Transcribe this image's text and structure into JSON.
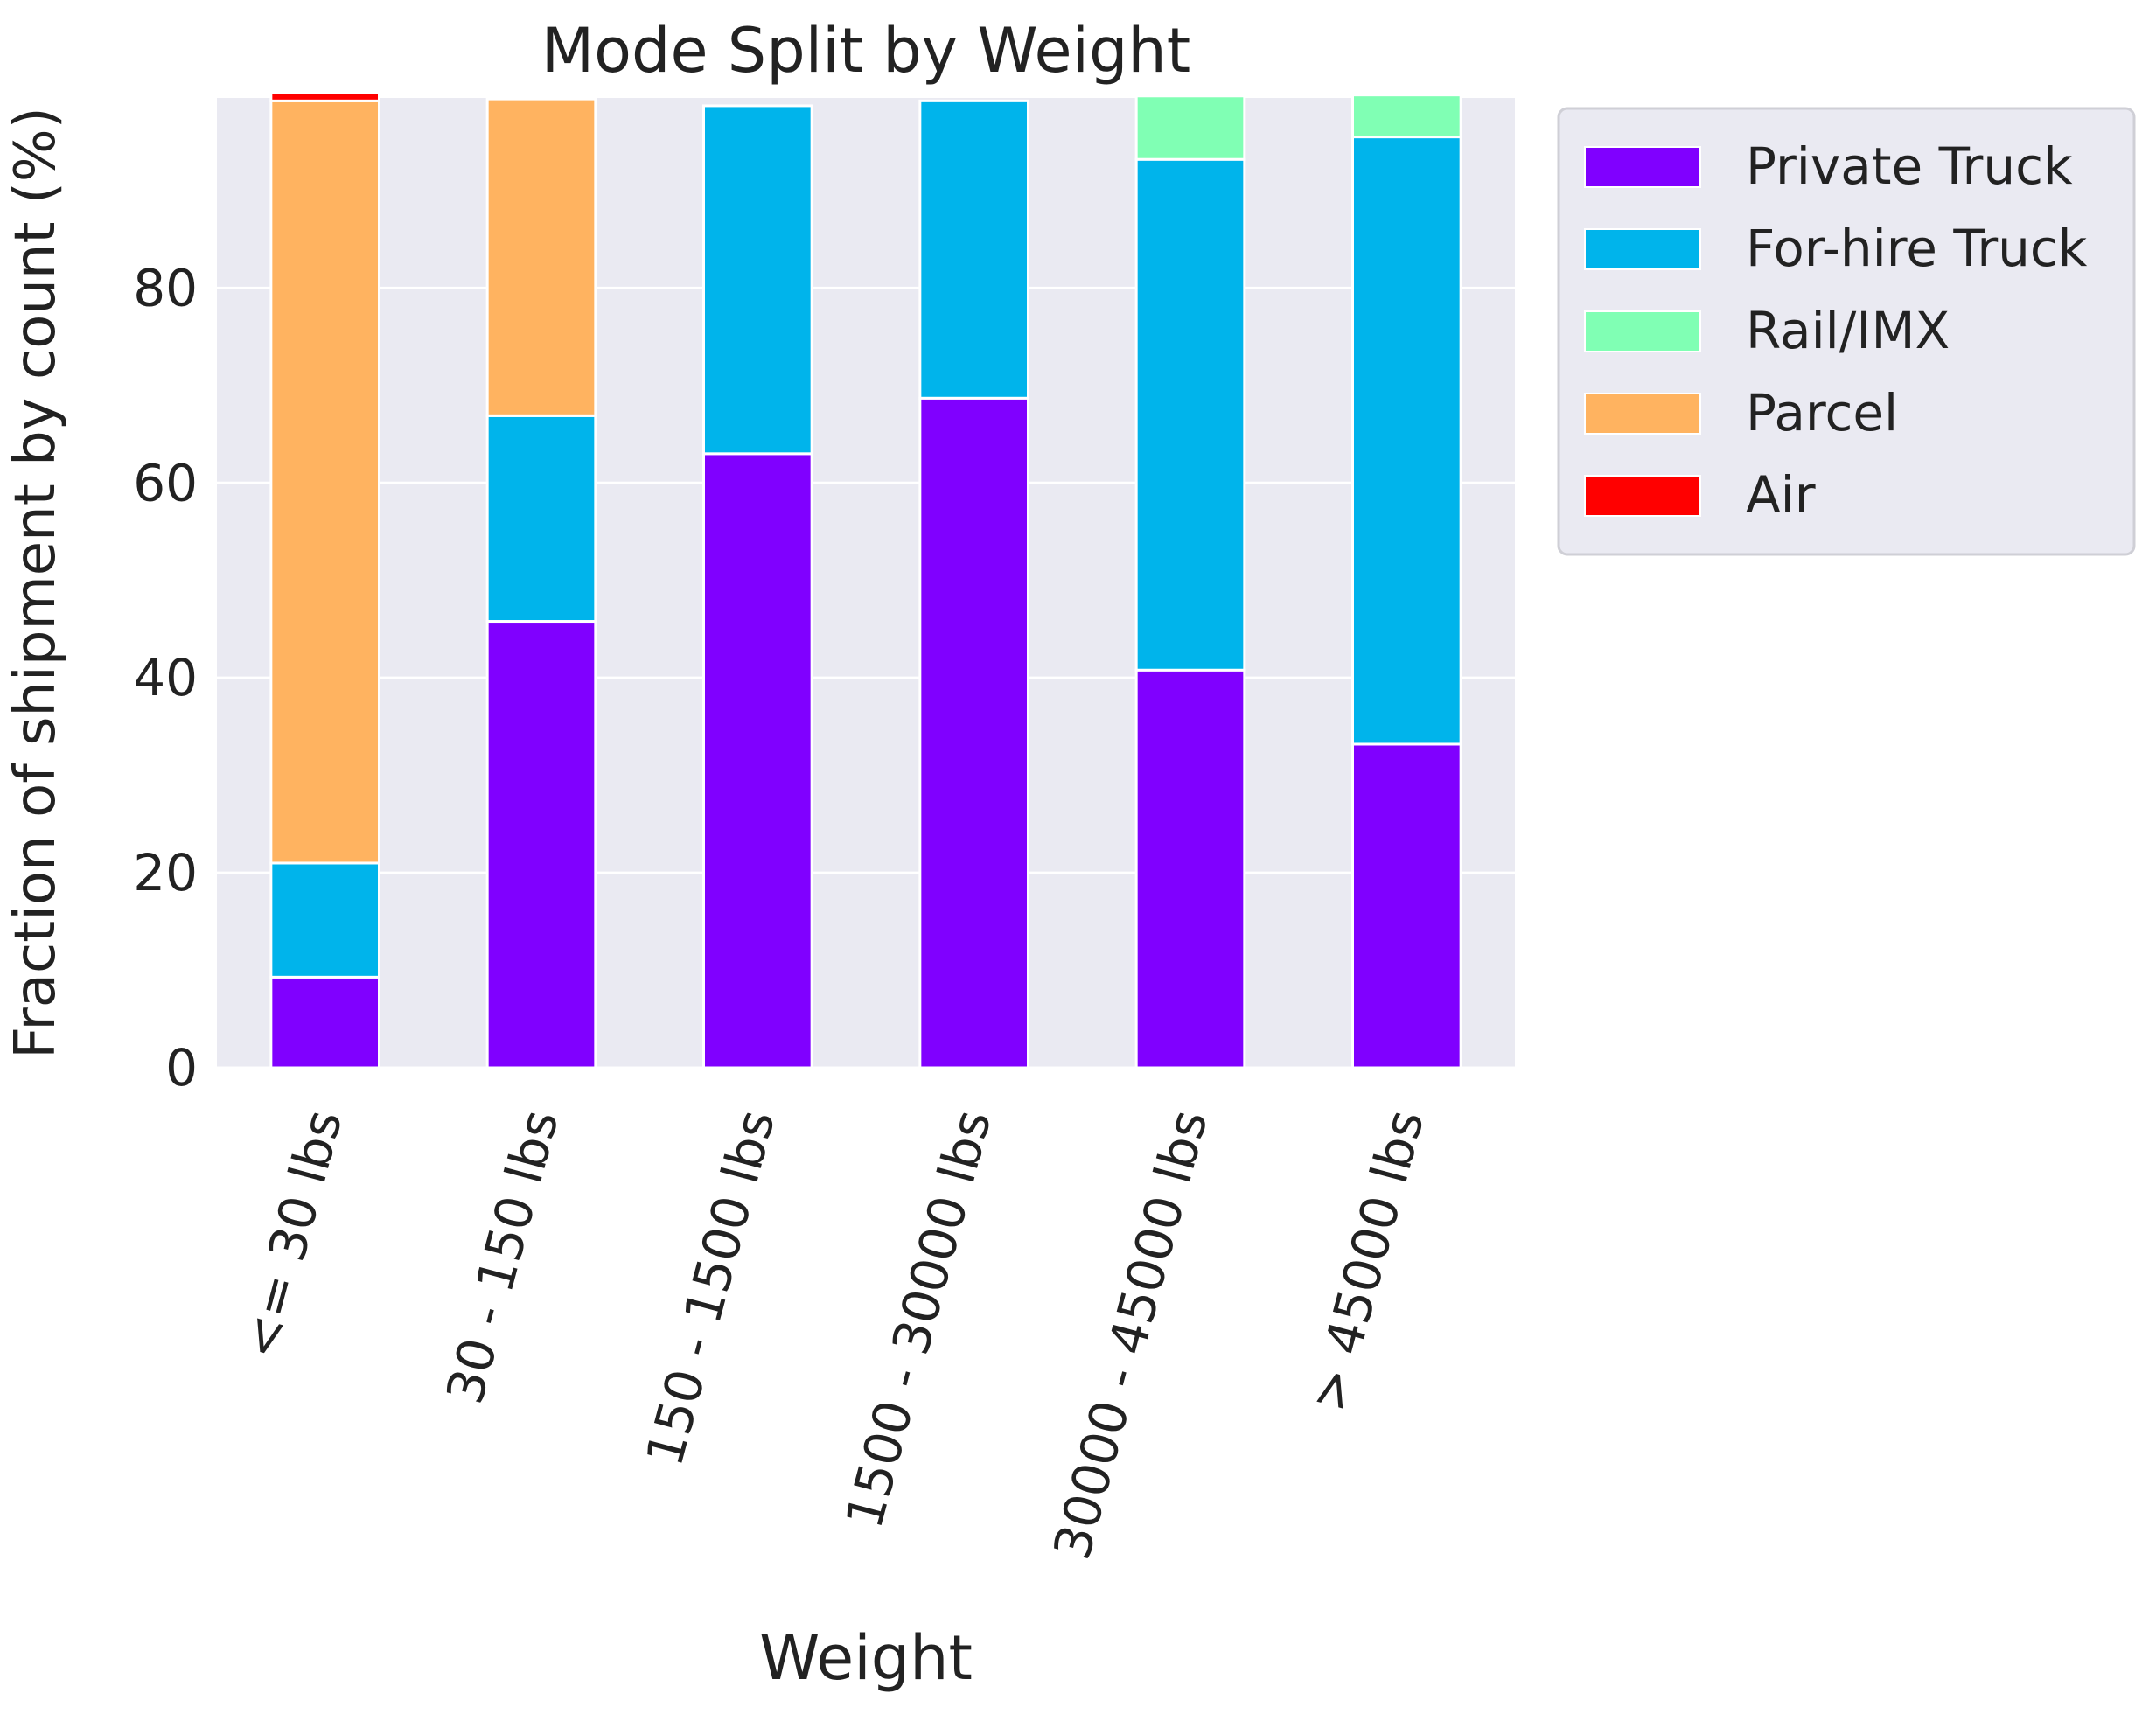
{
  "chart_data": {
    "type": "bar",
    "stacked": true,
    "title": "Mode Split by Weight",
    "xlabel": "Weight",
    "ylabel": "Fraction of shipment by count (%)",
    "ylim": [
      0,
      99.5
    ],
    "yticks": [
      0,
      20,
      40,
      60,
      80
    ],
    "grid": true,
    "legend_placement": "outside-right",
    "categories": [
      "<= 30 lbs",
      "30 - 150 lbs",
      "150 - 1500 lbs",
      "1500 - 30000 lbs",
      "30000 - 45000 lbs",
      "> 45000 lbs"
    ],
    "series": [
      {
        "name": "Private Truck",
        "color": "#8000ff",
        "values": [
          9.3,
          45.8,
          63.0,
          68.7,
          40.8,
          33.2
        ]
      },
      {
        "name": "For-hire Truck",
        "color": "#00b4eb",
        "values": [
          11.7,
          21.1,
          35.7,
          30.5,
          52.4,
          62.3
        ]
      },
      {
        "name": "Rail/IMX",
        "color": "#80ffb4",
        "values": [
          0.0,
          0.0,
          0.0,
          0.0,
          6.5,
          4.3
        ]
      },
      {
        "name": "Parcel",
        "color": "#ffb360",
        "values": [
          78.2,
          32.5,
          0.0,
          0.0,
          0.0,
          0.0
        ]
      },
      {
        "name": "Air",
        "color": "#ff0000",
        "values": [
          0.8,
          0.0,
          0.0,
          0.0,
          0.0,
          0.0
        ]
      }
    ],
    "colors": {
      "plot_background": "#eaeaf2",
      "grid": "#ffffff",
      "text": "#222222"
    }
  }
}
